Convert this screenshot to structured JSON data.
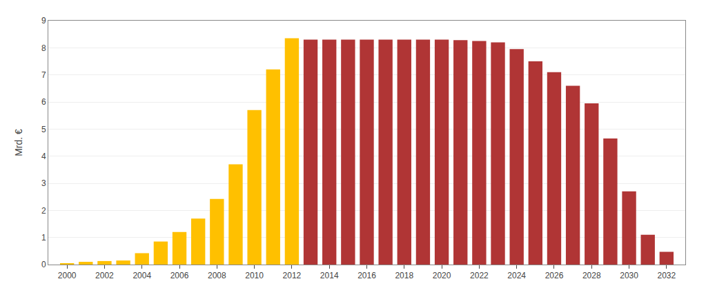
{
  "chart_data": {
    "type": "bar",
    "x": [
      2000,
      2001,
      2002,
      2003,
      2004,
      2005,
      2006,
      2007,
      2008,
      2009,
      2010,
      2011,
      2012,
      2013,
      2014,
      2015,
      2016,
      2017,
      2018,
      2019,
      2020,
      2021,
      2022,
      2023,
      2024,
      2025,
      2026,
      2027,
      2028,
      2029,
      2030,
      2031,
      2032
    ],
    "values": [
      0.05,
      0.1,
      0.13,
      0.15,
      0.42,
      0.85,
      1.2,
      1.7,
      2.42,
      3.7,
      5.7,
      7.2,
      8.35,
      8.3,
      8.3,
      8.3,
      8.3,
      8.3,
      8.3,
      8.3,
      8.3,
      8.28,
      8.25,
      8.2,
      7.95,
      7.5,
      7.1,
      6.6,
      5.95,
      4.65,
      2.7,
      1.1,
      0.47
    ],
    "colors": [
      "#FFC000",
      "#FFC000",
      "#FFC000",
      "#FFC000",
      "#FFC000",
      "#FFC000",
      "#FFC000",
      "#FFC000",
      "#FFC000",
      "#FFC000",
      "#FFC000",
      "#FFC000",
      "#FFC000",
      "#B03535",
      "#B03535",
      "#B03535",
      "#B03535",
      "#B03535",
      "#B03535",
      "#B03535",
      "#B03535",
      "#B03535",
      "#B03535",
      "#B03535",
      "#B03535",
      "#B03535",
      "#B03535",
      "#B03535",
      "#B03535",
      "#B03535",
      "#B03535",
      "#B03535",
      "#B03535"
    ],
    "ylabel": "Mrd. €",
    "xlim": [
      1999,
      2033
    ],
    "xticks": [
      2000,
      2002,
      2004,
      2006,
      2008,
      2010,
      2012,
      2014,
      2016,
      2018,
      2020,
      2022,
      2024,
      2026,
      2028,
      2030,
      2032
    ],
    "ylim": [
      0,
      9
    ],
    "yticks": [
      0,
      1,
      2,
      3,
      4,
      5,
      6,
      7,
      8,
      9
    ],
    "grid": true
  }
}
